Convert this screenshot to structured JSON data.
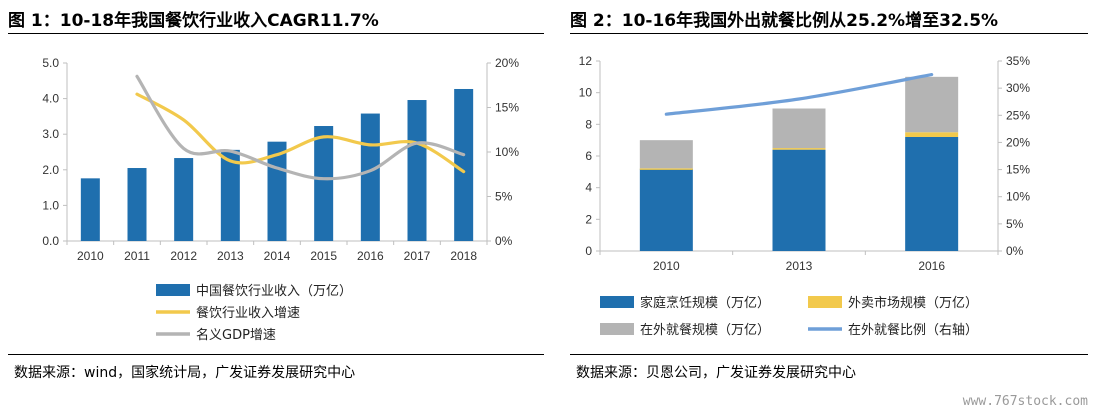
{
  "panels": [
    {
      "title": "图 1：10-18年我国餐饮行业收入CAGR11.7%",
      "source": "数据来源：wind，国家统计局，广发证券发展研究中心"
    },
    {
      "title": "图 2：10-16年我国外出就餐比例从25.2%增至32.5%",
      "source": "数据来源：贝恩公司，广发证券发展研究中心"
    }
  ],
  "watermark": "www.767stock.com",
  "colors": {
    "blue": "#1f6fae",
    "yellow": "#f2c94c",
    "gray": "#b4b4b4",
    "lightblue": "#6f9fd8",
    "axis": "#bfbfbf"
  },
  "chart_data": [
    {
      "type": "bar",
      "categories": [
        "2010",
        "2011",
        "2012",
        "2013",
        "2014",
        "2015",
        "2016",
        "2017",
        "2018"
      ],
      "ylim": [
        0,
        5
      ],
      "y_ticks": [
        "0.0",
        "1.0",
        "2.0",
        "3.0",
        "4.0",
        "5.0"
      ],
      "y2lim": [
        0,
        0.2
      ],
      "y2_ticks": [
        "0%",
        "5%",
        "10%",
        "15%",
        "20%"
      ],
      "grid": false,
      "legend_position": "bottom-left",
      "series": [
        {
          "name": "中国餐饮行业收入（万亿）",
          "type": "bar",
          "axis": "left",
          "values": [
            1.76,
            2.05,
            2.33,
            2.56,
            2.79,
            3.23,
            3.58,
            3.96,
            4.27
          ]
        },
        {
          "name": "餐饮行业收入增速",
          "type": "line",
          "axis": "right",
          "values": [
            null,
            0.165,
            0.136,
            0.09,
            0.097,
            0.117,
            0.108,
            0.11,
            0.078
          ]
        },
        {
          "name": "名义GDP增速",
          "type": "line",
          "axis": "right",
          "values": [
            null,
            0.185,
            0.104,
            0.101,
            0.082,
            0.07,
            0.079,
            0.11,
            0.097
          ]
        }
      ]
    },
    {
      "type": "bar",
      "stacked": true,
      "categories": [
        "2010",
        "2013",
        "2016"
      ],
      "ylim": [
        0,
        12
      ],
      "y_ticks": [
        "0",
        "2",
        "4",
        "6",
        "8",
        "10",
        "12"
      ],
      "y2lim": [
        0,
        0.35
      ],
      "y2_ticks": [
        "0%",
        "5%",
        "10%",
        "15%",
        "20%",
        "25%",
        "30%",
        "35%"
      ],
      "grid": false,
      "legend_position": "bottom",
      "series": [
        {
          "name": "家庭烹饪规模（万亿）",
          "type": "bar",
          "axis": "left",
          "values": [
            5.2,
            6.4,
            7.2
          ]
        },
        {
          "name": "外卖市场规模（万亿）",
          "type": "bar",
          "axis": "left",
          "values": [
            0.02,
            0.1,
            0.3
          ]
        },
        {
          "name": "在外就餐规模（万亿）",
          "type": "bar",
          "axis": "left",
          "values": [
            1.78,
            2.5,
            3.5
          ]
        },
        {
          "name": "在外就餐比例（右轴）",
          "type": "line",
          "axis": "right",
          "values": [
            0.252,
            0.28,
            0.325
          ]
        }
      ]
    }
  ]
}
